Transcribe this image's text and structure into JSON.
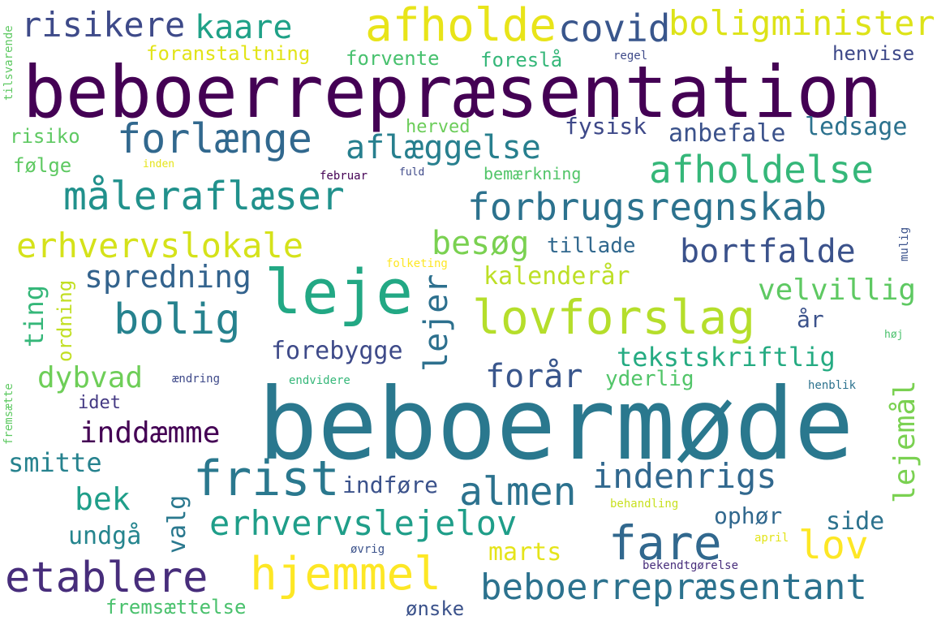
{
  "words": [
    {
      "text": "beboerrepræsentation",
      "color": "#440154"
    },
    {
      "text": "beboermøde",
      "color": "#2a788e"
    },
    {
      "text": "leje",
      "color": "#22a884"
    },
    {
      "text": "afholde",
      "color": "#e8e419"
    },
    {
      "text": "lovforslag",
      "color": "#b5de2b"
    },
    {
      "text": "frist",
      "color": "#2a788e"
    },
    {
      "text": "fare",
      "color": "#31688e"
    },
    {
      "text": "hjemmel",
      "color": "#fde725"
    },
    {
      "text": "etablere",
      "color": "#472d7b"
    },
    {
      "text": "forbrugsregnskab",
      "color": "#2c728e"
    },
    {
      "text": "afholdelse",
      "color": "#35b779"
    },
    {
      "text": "måleraflæser",
      "color": "#21918c"
    },
    {
      "text": "forlænge",
      "color": "#31688e"
    },
    {
      "text": "erhvervslokale",
      "color": "#d5e21a"
    },
    {
      "text": "bolig",
      "color": "#26828e"
    },
    {
      "text": "almen",
      "color": "#2c728e"
    },
    {
      "text": "beboerrepræsentant",
      "color": "#2c728e"
    },
    {
      "text": "erhvervslejelov",
      "color": "#1f9e89"
    },
    {
      "text": "indenrigs",
      "color": "#31688e"
    },
    {
      "text": "lov",
      "color": "#fde725"
    },
    {
      "text": "boligminister",
      "color": "#dde318"
    },
    {
      "text": "risikere",
      "color": "#3e4a89"
    },
    {
      "text": "kaare",
      "color": "#1fa187"
    },
    {
      "text": "covid",
      "color": "#39568c"
    },
    {
      "text": "aflæggelse",
      "color": "#277f8e"
    },
    {
      "text": "bortfalde",
      "color": "#3b528b"
    },
    {
      "text": "besøg",
      "color": "#7ad151"
    },
    {
      "text": "spredning",
      "color": "#33638d"
    },
    {
      "text": "lejer",
      "color": "#2d708e"
    },
    {
      "text": "velvillig",
      "color": "#5ec962"
    },
    {
      "text": "forår",
      "color": "#39568c"
    },
    {
      "text": "dybvad",
      "color": "#6ece58"
    },
    {
      "text": "inddæmme",
      "color": "#440154"
    },
    {
      "text": "smitte",
      "color": "#26828e"
    },
    {
      "text": "bek",
      "color": "#1f9e89"
    },
    {
      "text": "tekstskriftlig",
      "color": "#25ab82"
    },
    {
      "text": "lejemål",
      "color": "#7ad151"
    },
    {
      "text": "forebygge",
      "color": "#3e4a89"
    },
    {
      "text": "anbefale",
      "color": "#3b528b"
    },
    {
      "text": "ledsage",
      "color": "#2c728e"
    },
    {
      "text": "fysisk",
      "color": "#3e4989"
    },
    {
      "text": "kalenderår",
      "color": "#bddf26"
    },
    {
      "text": "tillade",
      "color": "#31688e"
    },
    {
      "text": "valg",
      "color": "#2a788e"
    },
    {
      "text": "undgå",
      "color": "#25858e"
    },
    {
      "text": "side",
      "color": "#2c728e"
    },
    {
      "text": "ophør",
      "color": "#31688e"
    },
    {
      "text": "marts",
      "color": "#e5e419"
    },
    {
      "text": "indføre",
      "color": "#3b528b"
    },
    {
      "text": "yderlig",
      "color": "#52c569"
    },
    {
      "text": "fremsættelse",
      "color": "#4ac16d"
    },
    {
      "text": "ønske",
      "color": "#3b528b"
    },
    {
      "text": "foranstaltning",
      "color": "#e2e418"
    },
    {
      "text": "forvente",
      "color": "#48c16e"
    },
    {
      "text": "foreslå",
      "color": "#35b779"
    },
    {
      "text": "henvise",
      "color": "#3e4989"
    },
    {
      "text": "risiko",
      "color": "#5ec962"
    },
    {
      "text": "følge",
      "color": "#5ec962"
    },
    {
      "text": "herved",
      "color": "#6ccd5a"
    },
    {
      "text": "bemærkning",
      "color": "#52c569"
    },
    {
      "text": "ting",
      "color": "#35b779"
    },
    {
      "text": "ordning",
      "color": "#c2df23"
    },
    {
      "text": "år",
      "color": "#3b528b"
    },
    {
      "text": "idet",
      "color": "#443983"
    },
    {
      "text": "regel",
      "color": "#3e4a89"
    },
    {
      "text": "tilsvarende",
      "color": "#5ec962"
    },
    {
      "text": "inden",
      "color": "#e5e419"
    },
    {
      "text": "februar",
      "color": "#440154"
    },
    {
      "text": "fuld",
      "color": "#3e4989"
    },
    {
      "text": "mulig",
      "color": "#3b528b"
    },
    {
      "text": "folketing",
      "color": "#fde725"
    },
    {
      "text": "høj",
      "color": "#4ac16d"
    },
    {
      "text": "fremsætte",
      "color": "#5ec962"
    },
    {
      "text": "ændring",
      "color": "#3e4989"
    },
    {
      "text": "endvidere",
      "color": "#35b779"
    },
    {
      "text": "henblik",
      "color": "#2c728e"
    },
    {
      "text": "behandling",
      "color": "#c8e020"
    },
    {
      "text": "april",
      "color": "#e2e418"
    },
    {
      "text": "øvrig",
      "color": "#3b528b"
    },
    {
      "text": "bekendtgørelse",
      "color": "#472d7b"
    }
  ]
}
